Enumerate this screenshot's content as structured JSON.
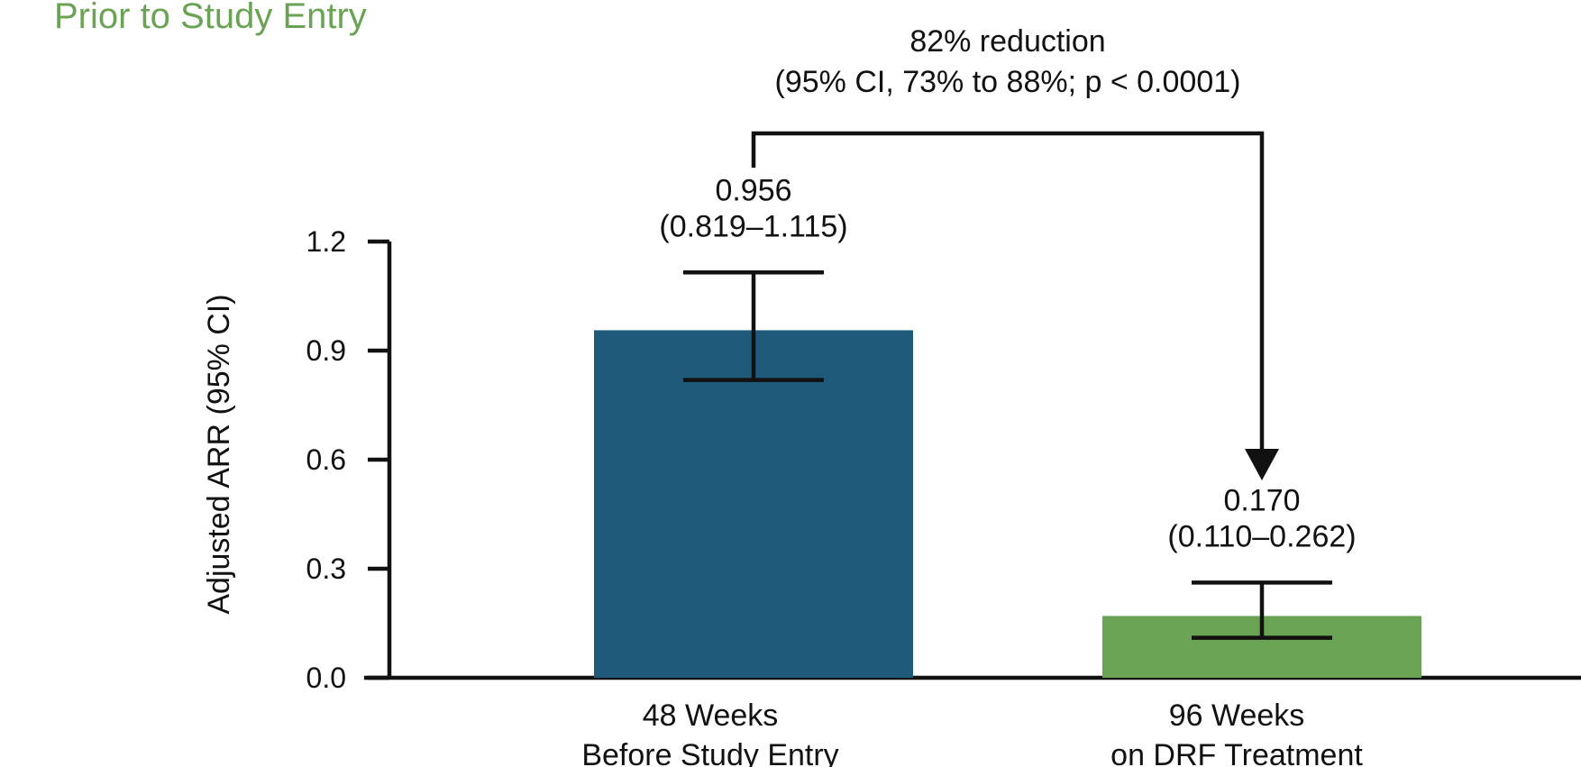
{
  "header": {
    "title": "Prior to Study Entry"
  },
  "colors": {
    "title": "#6aa354",
    "bar_before": "#1f5a7a",
    "bar_after": "#6aa354",
    "axis": "#111111"
  },
  "chart_data": {
    "type": "bar",
    "title": "",
    "xlabel": "",
    "ylabel": "Adjusted ARR (95% CI)",
    "ylim": [
      0,
      1.2
    ],
    "yticks": [
      "0.0",
      "0.3",
      "0.6",
      "0.9",
      "1.2"
    ],
    "categories": [
      {
        "line1": "48 Weeks",
        "line2": "Before Study Entry"
      },
      {
        "line1": "96 Weeks",
        "line2": "on DRF Treatment"
      }
    ],
    "values": [
      0.956,
      0.17
    ],
    "ci_low": [
      0.819,
      0.11
    ],
    "ci_high": [
      1.115,
      0.262
    ],
    "value_labels": [
      "0.956",
      "0.170"
    ],
    "ci_labels": [
      "(0.819–1.115)",
      "(0.110–0.262)"
    ],
    "annotation": {
      "line1": "82% reduction",
      "line2": "(95% CI, 73% to 88%; p < 0.0001)"
    },
    "grid": false,
    "legend": "none"
  }
}
